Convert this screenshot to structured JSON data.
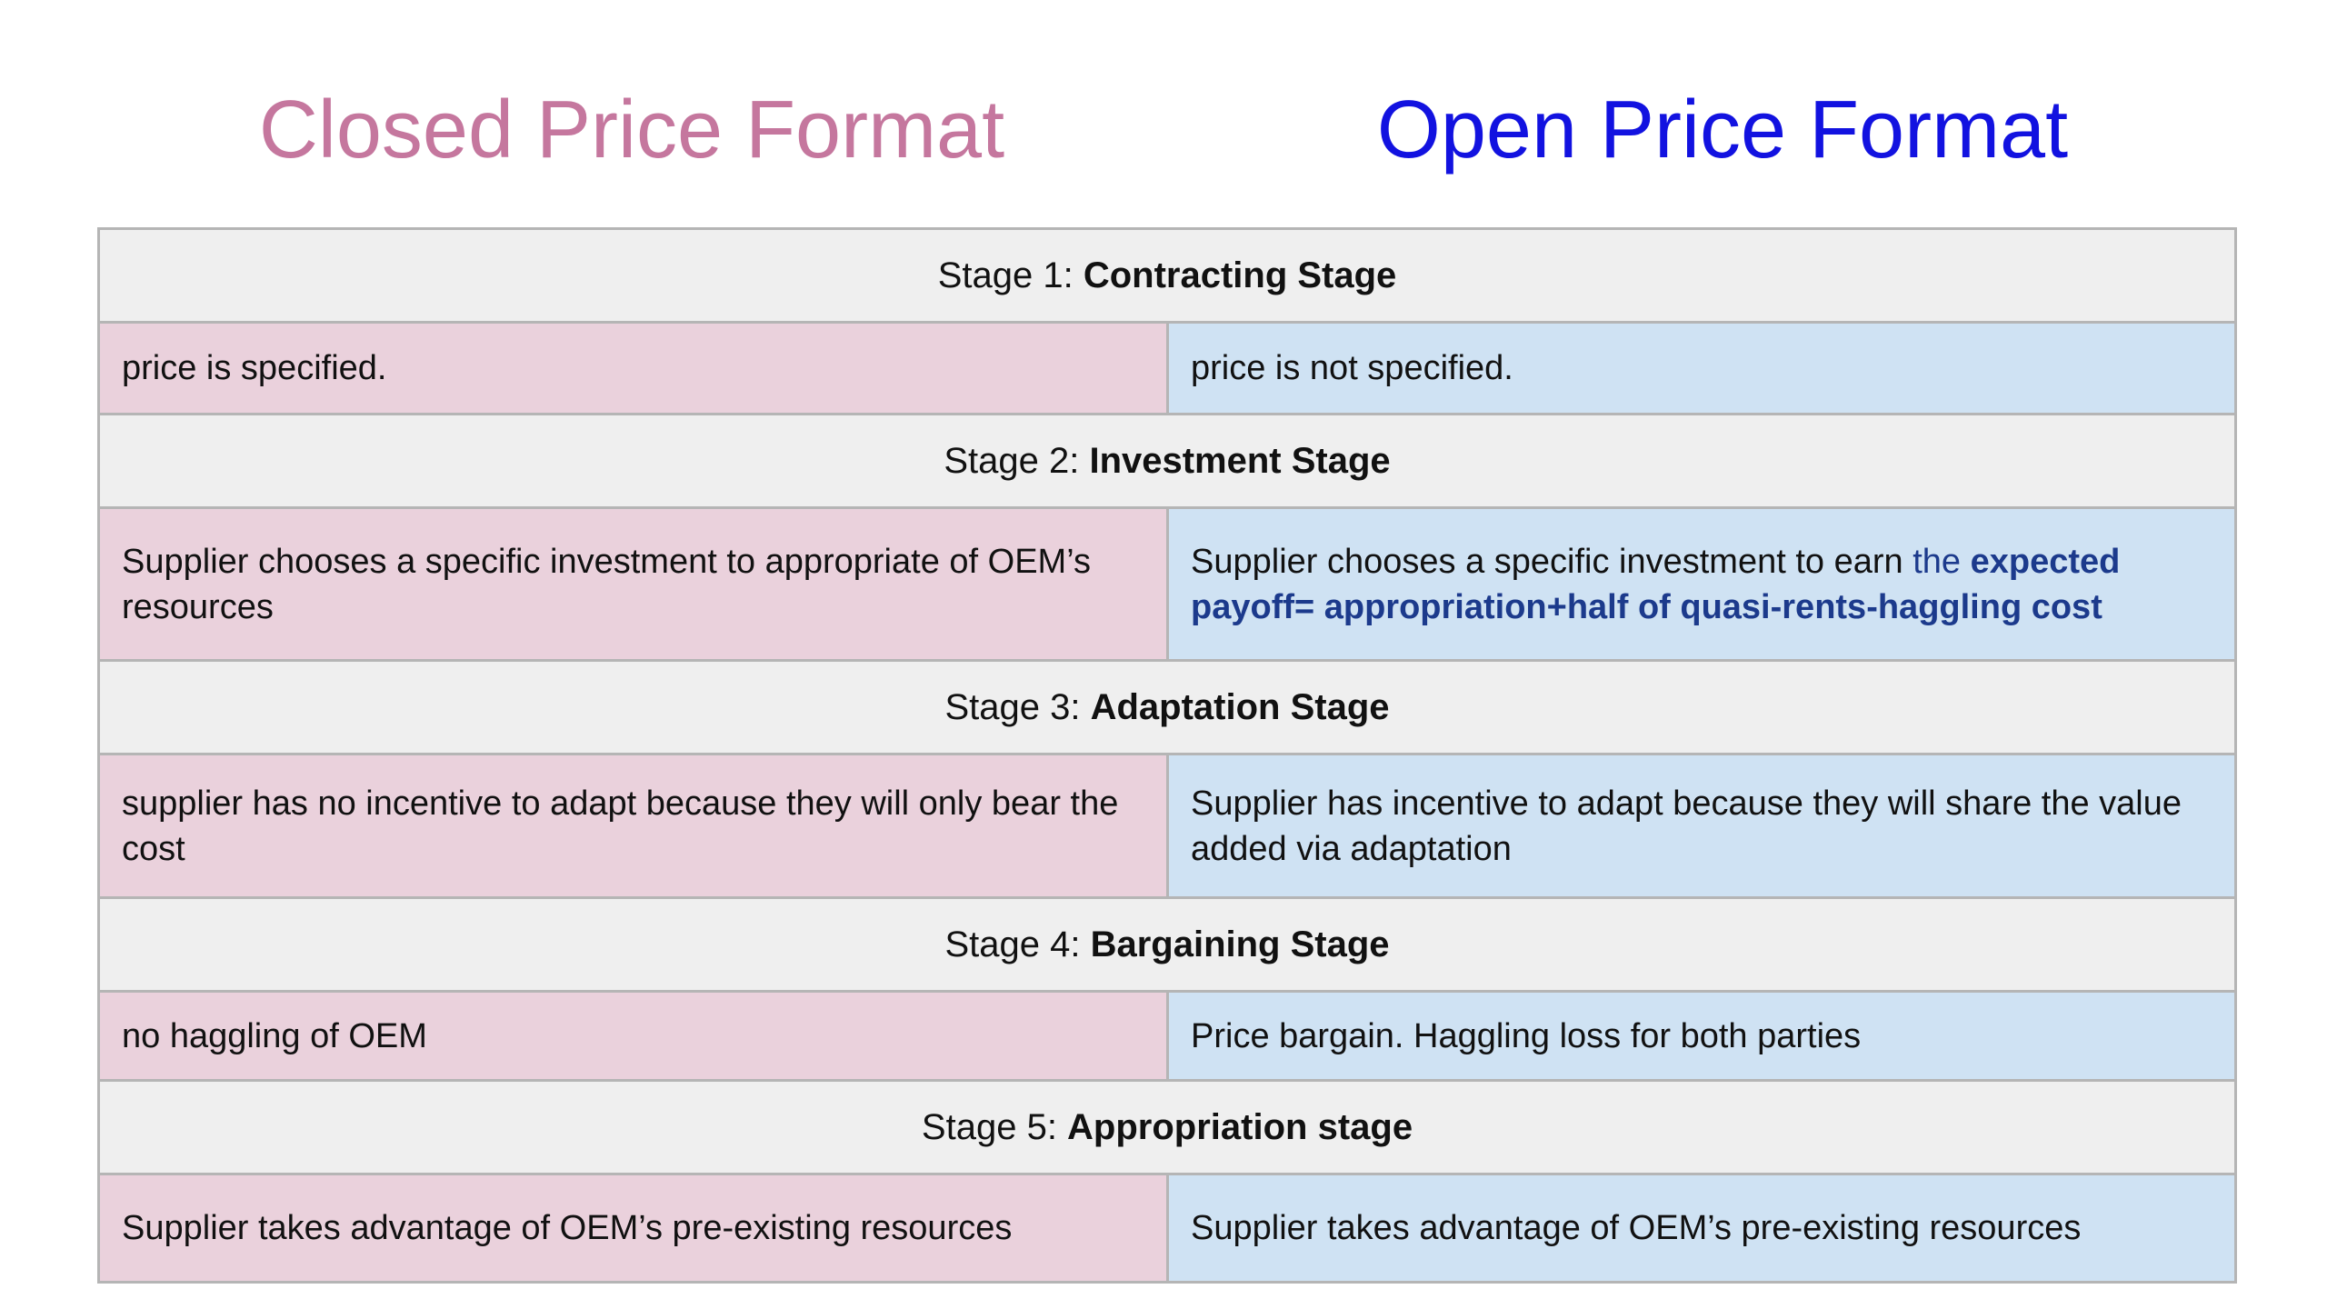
{
  "headings": {
    "closed": "Closed Price Format",
    "open": "Open Price Format"
  },
  "colors": {
    "closed_heading": "#c5779e",
    "open_heading": "#1212e0",
    "closed_cell": "#ead1dc",
    "open_cell": "#cfe2f3",
    "stage_row": "#efefef",
    "accent_text": "#1c3a8c"
  },
  "stages": [
    {
      "prefix": "Stage 1: ",
      "name": "Contracting Stage",
      "closed": "price is specified.",
      "open": "price is not specified."
    },
    {
      "prefix": "Stage 2: ",
      "name": "Investment Stage",
      "closed": "Supplier chooses a specific investment to appropriate of OEM’s resources",
      "open_plain": "Supplier chooses a specific investment to earn ",
      "open_accent": "the ",
      "open_accent_bold": "expected payoff= appropriation+half of quasi-rents-haggling cost"
    },
    {
      "prefix": "Stage 3: ",
      "name": "Adaptation Stage",
      "closed": "supplier has no incentive to adapt because they will only bear the cost",
      "open": "Supplier has incentive to adapt because they will share the value added via adaptation"
    },
    {
      "prefix": "Stage 4: ",
      "name": "Bargaining Stage",
      "closed": "no haggling of OEM",
      "open": "Price bargain. Haggling loss for both parties"
    },
    {
      "prefix": "Stage 5: ",
      "name": "Appropriation stage",
      "closed": "Supplier takes advantage of OEM’s pre-existing resources",
      "open": "Supplier takes advantage of OEM’s pre-existing resources"
    }
  ]
}
